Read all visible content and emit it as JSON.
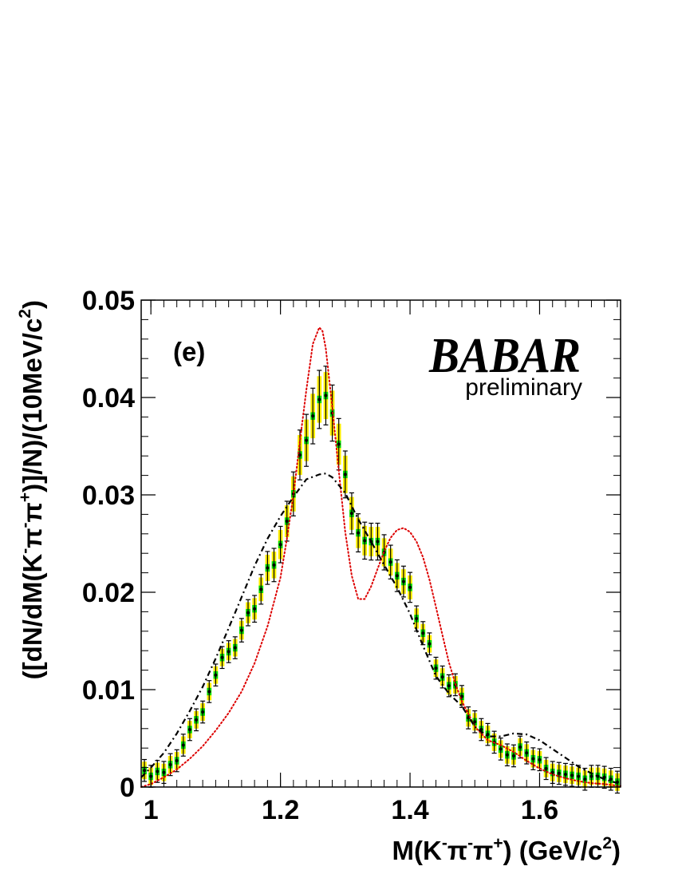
{
  "chart_data": {
    "type": "scatter",
    "panel_label": "(e)",
    "logo": "BABAR",
    "annotation": "preliminary",
    "xlabel": {
      "main": "M(K",
      "sup1": "-",
      "pi1": "π",
      "sup2": "-",
      "pi2": "π",
      "sup3": "+",
      "units": ") (GeV/c",
      "units_sup": "2",
      "close": ")"
    },
    "ylabel": {
      "p1": "([dN/dM(K",
      "s1": "-",
      "p2": "π",
      "s2": "-",
      "p3": "π",
      "s3": "+",
      "p4": ")]/N)/(10MeV/c",
      "s4": "2",
      "p5": ")"
    },
    "xlim": [
      0.985,
      1.725
    ],
    "ylim": [
      0,
      0.05
    ],
    "x_ticks": [
      {
        "v": 1.0,
        "label": "1"
      },
      {
        "v": 1.2,
        "label": "1.2"
      },
      {
        "v": 1.4,
        "label": "1.4"
      },
      {
        "v": 1.6,
        "label": "1.6"
      }
    ],
    "y_ticks": [
      {
        "v": 0,
        "label": "0"
      },
      {
        "v": 0.01,
        "label": "0.01"
      },
      {
        "v": 0.02,
        "label": "0.02"
      },
      {
        "v": 0.03,
        "label": "0.03"
      },
      {
        "v": 0.04,
        "label": "0.04"
      },
      {
        "v": 0.05,
        "label": "0.05"
      }
    ],
    "x_minor_step": 0.02,
    "y_minor_step": 0.002,
    "grid": false,
    "colors": {
      "stat_box": "#00dd00",
      "syst_box": "#ffee00",
      "red_curve": "#dd0000",
      "black_curve": "#000000"
    },
    "data_points": {
      "x": [
        0.99,
        1.0,
        1.01,
        1.02,
        1.03,
        1.04,
        1.05,
        1.06,
        1.07,
        1.08,
        1.09,
        1.1,
        1.11,
        1.12,
        1.13,
        1.14,
        1.15,
        1.16,
        1.17,
        1.18,
        1.19,
        1.2,
        1.21,
        1.22,
        1.23,
        1.24,
        1.25,
        1.26,
        1.27,
        1.28,
        1.29,
        1.3,
        1.31,
        1.32,
        1.33,
        1.34,
        1.35,
        1.36,
        1.37,
        1.38,
        1.39,
        1.4,
        1.41,
        1.42,
        1.43,
        1.44,
        1.45,
        1.46,
        1.47,
        1.48,
        1.49,
        1.5,
        1.51,
        1.52,
        1.53,
        1.54,
        1.55,
        1.56,
        1.57,
        1.58,
        1.59,
        1.6,
        1.61,
        1.62,
        1.63,
        1.64,
        1.65,
        1.66,
        1.67,
        1.68,
        1.69,
        1.7,
        1.71,
        1.72
      ],
      "y": [
        0.0017,
        0.0011,
        0.0016,
        0.0015,
        0.0023,
        0.0027,
        0.0043,
        0.0059,
        0.0069,
        0.0077,
        0.0098,
        0.0115,
        0.0133,
        0.0139,
        0.0143,
        0.0161,
        0.0179,
        0.0183,
        0.0203,
        0.0225,
        0.0228,
        0.0249,
        0.0273,
        0.0301,
        0.0341,
        0.0356,
        0.0381,
        0.0398,
        0.0402,
        0.0384,
        0.0352,
        0.0321,
        0.0281,
        0.0261,
        0.0253,
        0.0252,
        0.0252,
        0.0241,
        0.0231,
        0.0217,
        0.0211,
        0.0205,
        0.0173,
        0.0158,
        0.0147,
        0.0122,
        0.0113,
        0.0104,
        0.0105,
        0.0093,
        0.0071,
        0.0067,
        0.0059,
        0.0054,
        0.0046,
        0.0039,
        0.0033,
        0.0032,
        0.0041,
        0.0035,
        0.0029,
        0.0028,
        0.0019,
        0.0015,
        0.0014,
        0.0013,
        0.0012,
        0.0011,
        0.0008,
        0.0011,
        0.0011,
        0.001,
        0.0008,
        0.0005
      ],
      "stat_err": 0.0007,
      "syst_err_frac": 0.06,
      "syst_err_min": 0.0009
    },
    "series": [
      {
        "style": "dotted-red",
        "x": [
          0.985,
          1.0,
          1.02,
          1.04,
          1.06,
          1.08,
          1.1,
          1.12,
          1.14,
          1.16,
          1.18,
          1.2,
          1.21,
          1.22,
          1.23,
          1.24,
          1.25,
          1.26,
          1.265,
          1.27,
          1.28,
          1.29,
          1.3,
          1.31,
          1.32,
          1.33,
          1.34,
          1.35,
          1.36,
          1.37,
          1.38,
          1.39,
          1.4,
          1.41,
          1.42,
          1.43,
          1.44,
          1.45,
          1.46,
          1.47,
          1.48,
          1.5,
          1.52,
          1.54,
          1.56,
          1.58,
          1.6,
          1.62,
          1.64,
          1.66,
          1.68,
          1.7,
          1.725
        ],
        "y": [
          0.0,
          0.0003,
          0.001,
          0.0018,
          0.0029,
          0.0042,
          0.0058,
          0.0076,
          0.0098,
          0.0127,
          0.0165,
          0.0215,
          0.0255,
          0.03,
          0.0355,
          0.0408,
          0.0455,
          0.0472,
          0.0468,
          0.045,
          0.039,
          0.0325,
          0.0262,
          0.0217,
          0.0193,
          0.0193,
          0.0206,
          0.0224,
          0.0242,
          0.0256,
          0.0264,
          0.0266,
          0.0262,
          0.0252,
          0.0236,
          0.0213,
          0.0185,
          0.0156,
          0.0128,
          0.0106,
          0.0088,
          0.0062,
          0.0048,
          0.0043,
          0.0036,
          0.0027,
          0.0019,
          0.0013,
          0.0009,
          0.0006,
          0.0004,
          0.0003,
          0.0001
        ]
      },
      {
        "style": "dash-dot-black",
        "x": [
          0.985,
          1.0,
          1.02,
          1.04,
          1.06,
          1.08,
          1.1,
          1.12,
          1.14,
          1.16,
          1.18,
          1.2,
          1.22,
          1.24,
          1.26,
          1.27,
          1.28,
          1.3,
          1.32,
          1.34,
          1.36,
          1.38,
          1.4,
          1.42,
          1.44,
          1.46,
          1.48,
          1.5,
          1.52,
          1.54,
          1.56,
          1.58,
          1.6,
          1.62,
          1.64,
          1.66,
          1.68,
          1.7,
          1.725
        ],
        "y": [
          0.001,
          0.002,
          0.0035,
          0.0055,
          0.0078,
          0.0103,
          0.0132,
          0.0163,
          0.0195,
          0.0227,
          0.0255,
          0.0278,
          0.0298,
          0.0316,
          0.0321,
          0.0322,
          0.0318,
          0.0302,
          0.0275,
          0.0252,
          0.0228,
          0.0205,
          0.0178,
          0.0145,
          0.0114,
          0.0096,
          0.0083,
          0.0062,
          0.0052,
          0.0052,
          0.0055,
          0.0054,
          0.0048,
          0.0039,
          0.003,
          0.0021,
          0.0014,
          0.0008,
          0.0003
        ]
      }
    ]
  }
}
